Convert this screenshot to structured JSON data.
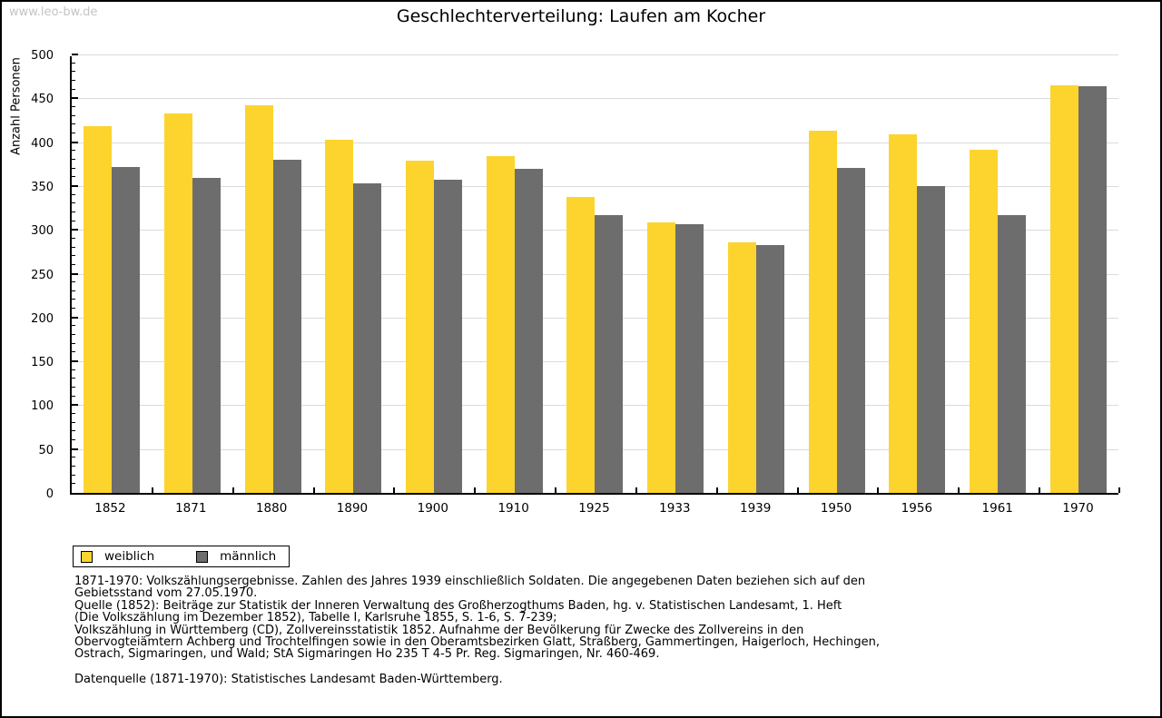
{
  "watermark": "www.leo-bw.de",
  "title": "Geschlechterverteilung: Laufen am Kocher",
  "chart_data": {
    "type": "bar",
    "title": "Geschlechterverteilung: Laufen am Kocher",
    "xlabel": "",
    "ylabel": "Anzahl Personen",
    "ylim": [
      0,
      500
    ],
    "ytick_step": 50,
    "minor_tick_step": 10,
    "grid": true,
    "legend_position": "bottom-left",
    "categories": [
      "1852",
      "1871",
      "1880",
      "1890",
      "1900",
      "1910",
      "1925",
      "1933",
      "1939",
      "1950",
      "1956",
      "1961",
      "1970"
    ],
    "series": [
      {
        "name": "weiblich",
        "color": "#FCD42D",
        "values": [
          420,
          435,
          444,
          404,
          380,
          386,
          339,
          310,
          287,
          415,
          411,
          393,
          467
        ]
      },
      {
        "name": "männlich",
        "color": "#6D6D6D",
        "values": [
          373,
          361,
          381,
          354,
          359,
          371,
          318,
          308,
          284,
          372,
          351,
          318,
          466
        ]
      }
    ]
  },
  "legend": {
    "items": [
      {
        "label": "weiblich",
        "color": "#FCD42D"
      },
      {
        "label": "männlich",
        "color": "#6D6D6D"
      }
    ]
  },
  "footer": {
    "lines": [
      "1871-1970: Volkszählungsergebnisse. Zahlen des Jahres 1939 einschließlich Soldaten. Die angegebenen Daten beziehen sich auf den",
      "Gebietsstand vom 27.05.1970.",
      "Quelle (1852): Beiträge zur Statistik der Inneren Verwaltung des Großherzogthums Baden, hg. v. Statistischen Landesamt, 1. Heft",
      "(Die Volkszählung im Dezember 1852), Tabelle I, Karlsruhe 1855, S. 1-6, S. 7-239;",
      "Volkszählung in Württemberg (CD), Zollvereinsstatistik 1852. Aufnahme der Bevölkerung für Zwecke des Zollvereins in den",
      "Obervogteiämtern Achberg und Trochtelfingen sowie in den Oberamtsbezirken Glatt, Straßberg, Gammertingen, Haigerloch, Hechingen,",
      "Ostrach, Sigmaringen, und Wald; StA Sigmaringen Ho 235 T 4-5 Pr. Reg. Sigmaringen, Nr. 460-469.",
      "",
      "Datenquelle (1871-1970): Statistisches Landesamt Baden-Württemberg."
    ]
  },
  "colors": {
    "bar_female": "#FCD42D",
    "bar_male": "#6D6D6D",
    "gridline": "#DBDBDB",
    "axis": "#000000",
    "watermark": "#C4C4C4"
  }
}
